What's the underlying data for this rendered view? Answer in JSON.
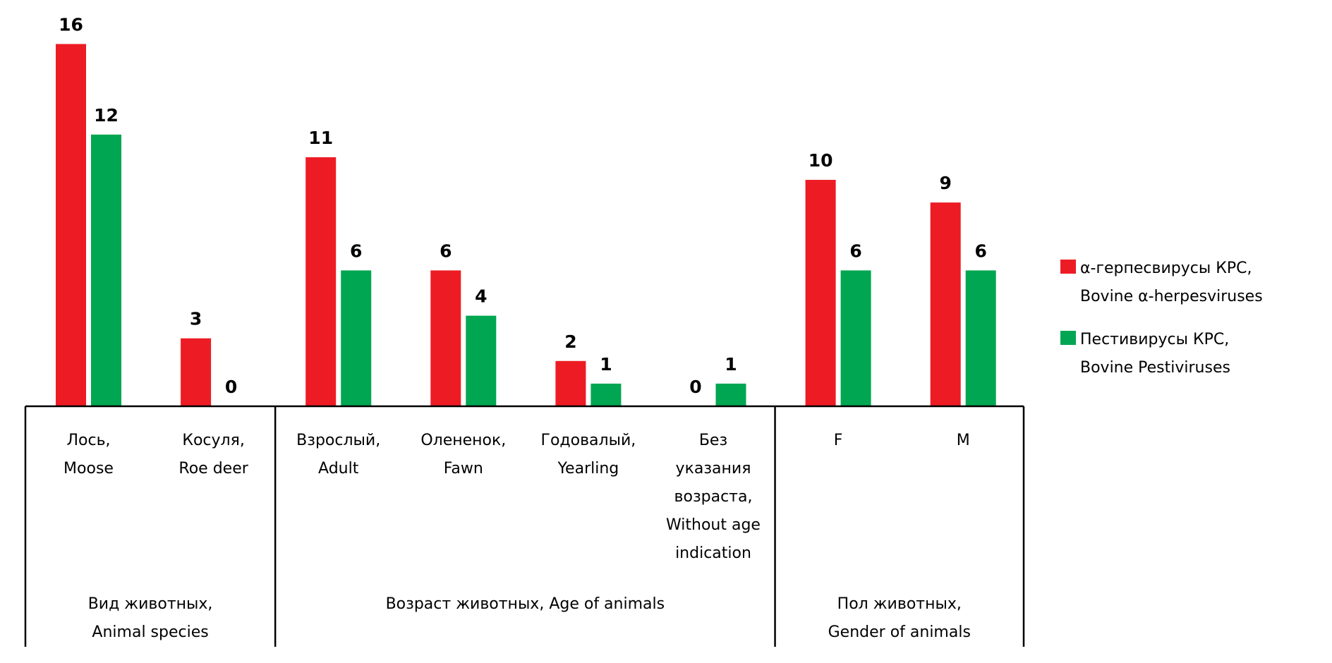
{
  "chart_data": {
    "type": "bar",
    "title": "",
    "xlabel": "",
    "ylabel": "",
    "ylim": [
      0,
      17
    ],
    "grid": false,
    "legend_position": "right",
    "categories": [
      {
        "lines": [
          "Лось,",
          "Moose"
        ]
      },
      {
        "lines": [
          "Косуля,",
          "Roe deer"
        ]
      },
      {
        "lines": [
          "Взрослый,",
          "Adult"
        ]
      },
      {
        "lines": [
          "Олененок,",
          "Fawn"
        ]
      },
      {
        "lines": [
          "Годовалый,",
          "Yearling"
        ]
      },
      {
        "lines": [
          "Без",
          "указания",
          "возраста,",
          "Without age",
          "indication"
        ]
      },
      {
        "lines": [
          "F"
        ]
      },
      {
        "lines": [
          "M"
        ]
      }
    ],
    "groups": [
      {
        "lines": [
          "Вид животных,",
          "Animal species"
        ],
        "count": 2
      },
      {
        "lines": [
          "Возраст животных, Age of animals"
        ],
        "count": 4
      },
      {
        "lines": [
          "Пол животных,",
          "Gender of animals"
        ],
        "count": 2
      }
    ],
    "series": [
      {
        "name_lines": [
          "α-герпесвирусы КРС,",
          "Bovine α-herpesviruses"
        ],
        "color": "#ed1c24",
        "values": [
          16,
          3,
          11,
          6,
          2,
          0,
          10,
          9
        ]
      },
      {
        "name_lines": [
          "Пестивирусы КРС,",
          "Bovine Pestiviruses"
        ],
        "color": "#00a651",
        "values": [
          12,
          0,
          6,
          4,
          1,
          1,
          6,
          6
        ]
      }
    ]
  }
}
